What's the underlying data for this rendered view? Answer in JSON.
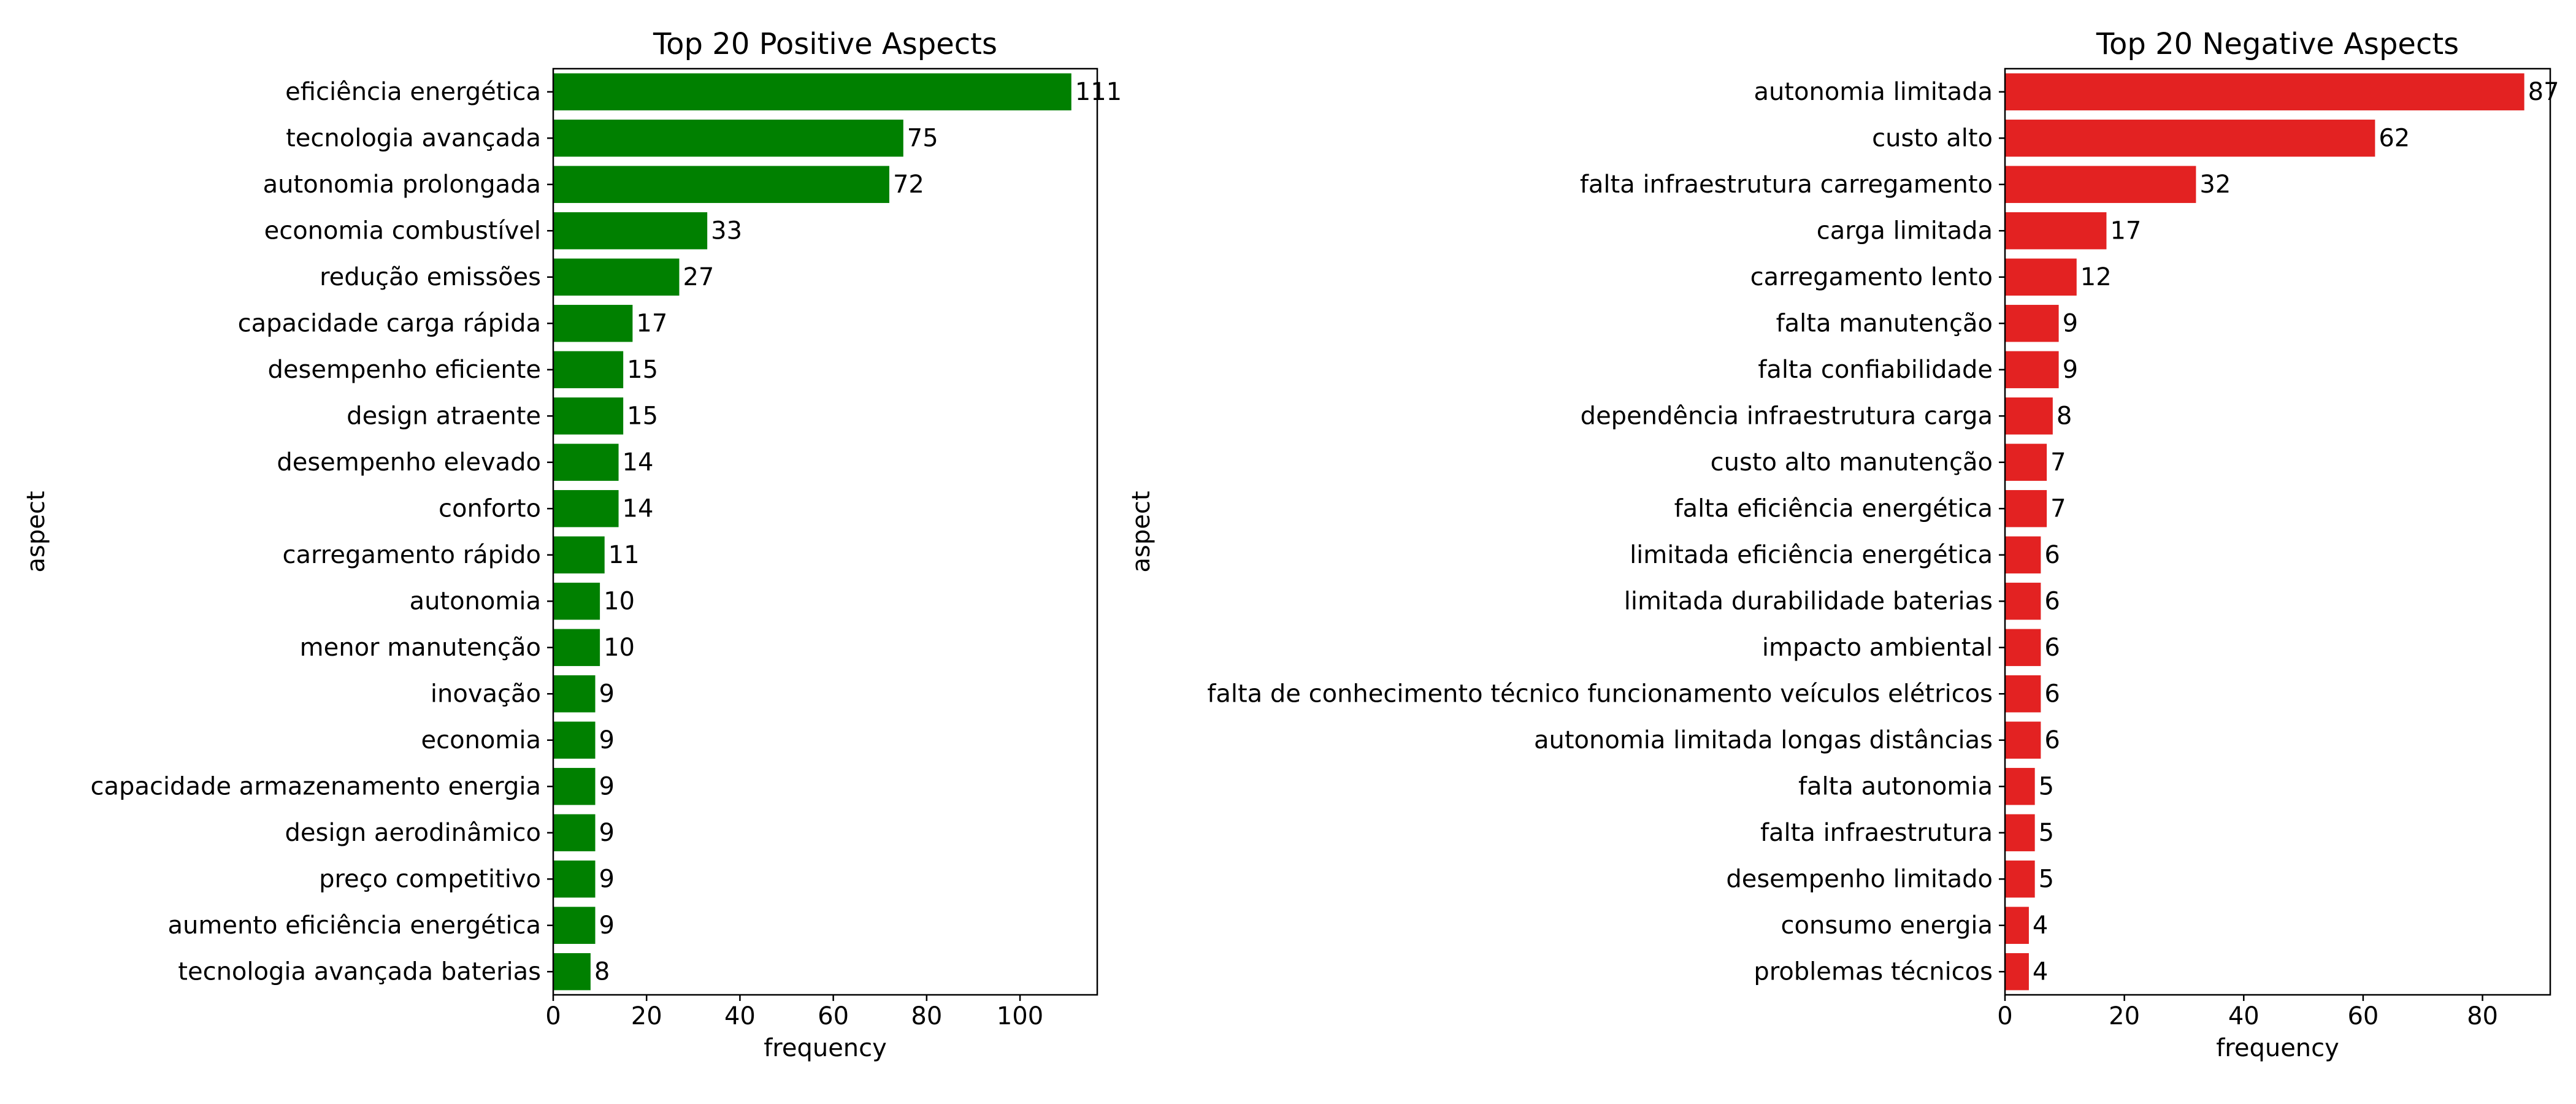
{
  "chart_data": [
    {
      "type": "bar",
      "orientation": "horizontal",
      "title": "Top 20 Positive Aspects",
      "xlabel": "frequency",
      "ylabel": "aspect",
      "xlim": [
        0,
        116.55
      ],
      "xticks": [
        0,
        20,
        40,
        60,
        80,
        100
      ],
      "bar_color": "#008000",
      "grid": false,
      "categories": [
        "eficiência energética",
        "tecnologia avançada",
        "autonomia prolongada",
        "economia combustível",
        "redução emissões",
        "capacidade carga rápida",
        "desempenho eficiente",
        "design atraente",
        "desempenho elevado",
        "conforto",
        "carregamento rápido",
        "autonomia",
        "menor manutenção",
        "inovação",
        "economia",
        "capacidade armazenamento energia",
        "design aerodinâmico",
        "preço competitivo",
        "aumento eficiência energética",
        "tecnologia avançada baterias"
      ],
      "values": [
        111,
        75,
        72,
        33,
        27,
        17,
        15,
        15,
        14,
        14,
        11,
        10,
        10,
        9,
        9,
        9,
        9,
        9,
        9,
        8
      ]
    },
    {
      "type": "bar",
      "orientation": "horizontal",
      "title": "Top 20 Negative Aspects",
      "xlabel": "frequency",
      "ylabel": "aspect",
      "xlim": [
        0,
        91.35
      ],
      "xticks": [
        0,
        20,
        40,
        60,
        80
      ],
      "bar_color": "#e32222",
      "grid": false,
      "categories": [
        "autonomia limitada",
        "custo alto",
        "falta infraestrutura carregamento",
        "carga limitada",
        "carregamento lento",
        "falta manutenção",
        "falta confiabilidade",
        "dependência infraestrutura carga",
        "custo alto manutenção",
        "falta eficiência energética",
        "limitada eficiência energética",
        "limitada durabilidade baterias",
        "impacto ambiental",
        "falta de conhecimento técnico funcionamento veículos elétricos",
        "autonomia limitada longas distâncias",
        "falta autonomia",
        "falta infraestrutura",
        "desempenho limitado",
        "consumo energia",
        "problemas técnicos"
      ],
      "values": [
        87,
        62,
        32,
        17,
        12,
        9,
        9,
        8,
        7,
        7,
        6,
        6,
        6,
        6,
        6,
        5,
        5,
        5,
        4,
        4
      ]
    }
  ]
}
